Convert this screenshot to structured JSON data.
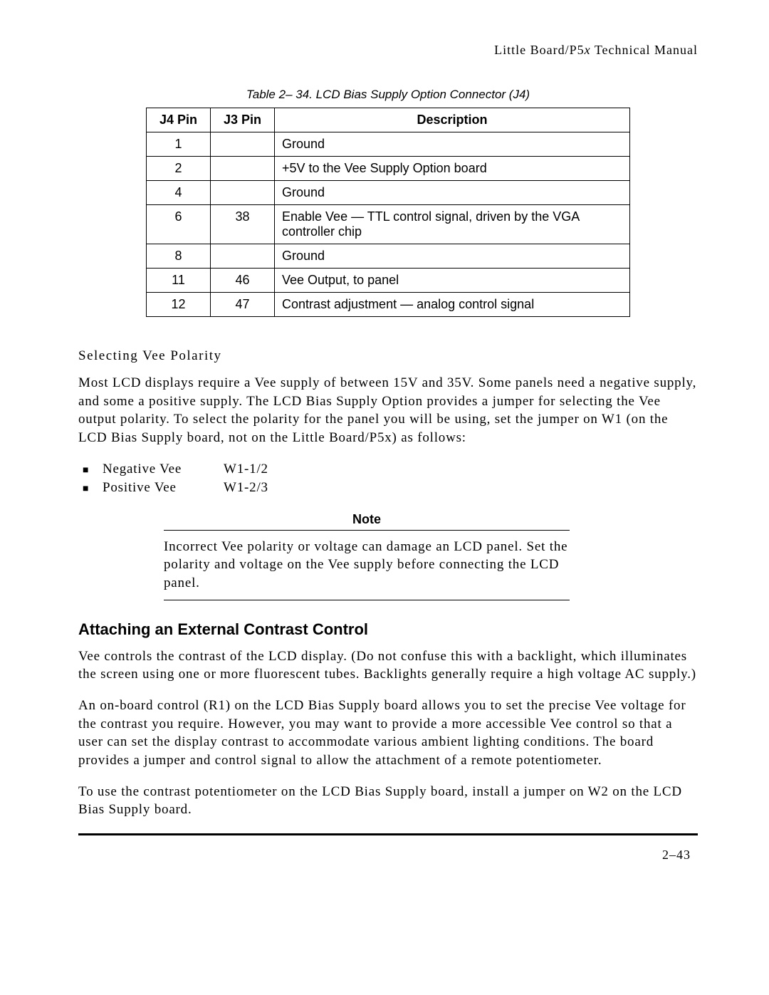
{
  "header": {
    "text_plain": "Little Board/P5",
    "text_italic": "x",
    "text_tail": " Technical Manual"
  },
  "table": {
    "caption": "Table 2– 34. LCD Bias Supply Option Connector (J4)",
    "columns": [
      "J4 Pin",
      "J3 Pin",
      "Description"
    ],
    "rows": [
      [
        "1",
        "",
        "Ground"
      ],
      [
        "2",
        "",
        "+5V to the Vee Supply Option board"
      ],
      [
        "4",
        "",
        "Ground"
      ],
      [
        "6",
        "38",
        "Enable Vee — TTL control signal, driven by the VGA controller chip"
      ],
      [
        "8",
        "",
        "Ground"
      ],
      [
        "11",
        "46",
        "Vee Output, to panel"
      ],
      [
        "12",
        "47",
        "Contrast adjustment — analog control signal"
      ]
    ]
  },
  "section1": {
    "subhead": "Selecting Vee Polarity",
    "para": "Most LCD displays require a Vee supply of between 15V and 35V.  Some panels need a negative supply, and some a positive supply.  The LCD Bias Supply Option provides a jumper for selecting the Vee output polarity.  To select the polarity for the panel you will be using, set the jumper on W1 (on the LCD Bias Supply board, not on the Little Board/P5x) as follows:",
    "items": [
      {
        "label": "Negative Vee",
        "value": "W1-1/2"
      },
      {
        "label": "Positive Vee",
        "value": "W1-2/3"
      }
    ]
  },
  "note": {
    "title": "Note",
    "text": "Incorrect Vee polarity or voltage can damage an LCD panel.  Set the polarity and voltage on the Vee supply before connecting the LCD panel."
  },
  "section2": {
    "heading": "Attaching an External Contrast Control",
    "para1": "Vee controls the contrast of the LCD display.  (Do not confuse this with a backlight, which illuminates the screen using one or more fluorescent tubes.  Backlights generally require a high voltage AC supply.)",
    "para2": "An on-board control (R1) on the LCD Bias Supply board allows you to set the precise Vee voltage for the contrast you require.  However, you may want to provide a more accessible Vee control so that a user can set the display contrast to accommodate various ambient lighting conditions.  The board provides a jumper and control signal to allow the attachment of a remote potentiometer.",
    "para3": "To use the contrast potentiometer on the LCD Bias Supply board, install a jumper on W2 on the LCD Bias Supply board."
  },
  "page_number": "2–43"
}
